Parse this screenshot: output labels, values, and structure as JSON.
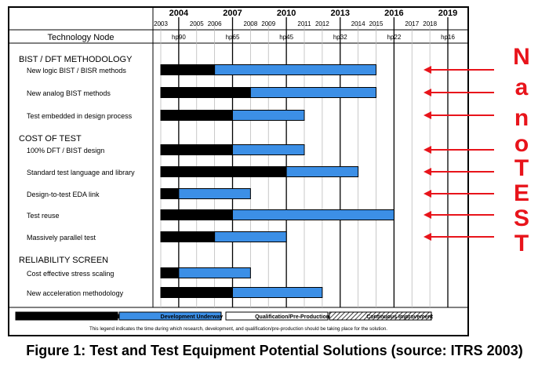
{
  "chart_data": {
    "type": "gantt",
    "major_years": [
      "2004",
      "2007",
      "2010",
      "2013",
      "2016",
      "2019"
    ],
    "minor_years": [
      "2003",
      "2005",
      "2006",
      "2008",
      "2009",
      "2011",
      "2012",
      "2014",
      "2015",
      "2017",
      "2018"
    ],
    "tech_node_label": "Technology Node",
    "tech_nodes": [
      {
        "year": 2004,
        "label": "hp90"
      },
      {
        "year": 2007,
        "label": "hp65"
      },
      {
        "year": 2010,
        "label": "hp45"
      },
      {
        "year": 2013,
        "label": "hp32"
      },
      {
        "year": 2016,
        "label": "hp22"
      },
      {
        "year": 2019,
        "label": "hp16"
      }
    ],
    "sections": [
      {
        "title": "BIST / DFT METHODOLOGY",
        "rows": [
          {
            "label": "New logic BIST / BISR methods",
            "research": [
              2003,
              2006
            ],
            "development": [
              2006,
              2015
            ],
            "arrow": true
          },
          {
            "label": "New analog BIST methods",
            "research": [
              2003,
              2008
            ],
            "development": [
              2008,
              2015
            ],
            "arrow": true
          },
          {
            "label": "Test embedded in design process",
            "research": [
              2003,
              2007
            ],
            "development": [
              2007,
              2011
            ],
            "arrow": true
          }
        ]
      },
      {
        "title": "COST OF TEST",
        "rows": [
          {
            "label": "100% DFT / BIST design",
            "research": [
              2003,
              2007
            ],
            "development": [
              2007,
              2011
            ],
            "arrow": true
          },
          {
            "label": "Standard test language and library",
            "research": [
              2003,
              2010
            ],
            "development": [
              2010,
              2014
            ],
            "arrow": true
          },
          {
            "label": "Design-to-test EDA link",
            "research": [
              2003,
              2004
            ],
            "development": [
              2004,
              2008
            ],
            "arrow": true
          },
          {
            "label": "Test reuse",
            "research": [
              2003,
              2007
            ],
            "development": [
              2007,
              2016
            ],
            "arrow": true
          },
          {
            "label": "Massively parallel test",
            "research": [
              2003,
              2006
            ],
            "development": [
              2006,
              2010
            ],
            "arrow": true
          }
        ]
      },
      {
        "title": "RELIABILITY SCREEN",
        "rows": [
          {
            "label": "Cost effective stress scaling",
            "research": [
              2003,
              2004
            ],
            "development": [
              2004,
              2008
            ],
            "arrow": false
          },
          {
            "label": "New acceleration methodology",
            "research": [
              2003,
              2007
            ],
            "development": [
              2007,
              2012
            ],
            "arrow": false
          }
        ]
      }
    ],
    "legend": [
      {
        "label": "Research Required",
        "style": "black"
      },
      {
        "label": "Development Underway",
        "style": "blue"
      },
      {
        "label": "Qualification/Pre-Production",
        "style": "white"
      },
      {
        "label": "Continuous Improvement",
        "style": "hatched"
      }
    ],
    "legend_note": "This legend indicates the time during which research, development, and qualification/pre-production should be taking place for the solution.",
    "colors": {
      "research": "#000000",
      "development": "#3c8fe6",
      "arrow": "#e8141b"
    }
  },
  "side_letters": [
    "N",
    "a",
    "n",
    "o",
    "T",
    "E",
    "S",
    "T"
  ],
  "caption": "Figure 1: Test and Test Equipment Potential Solutions (source: ITRS 2003)"
}
